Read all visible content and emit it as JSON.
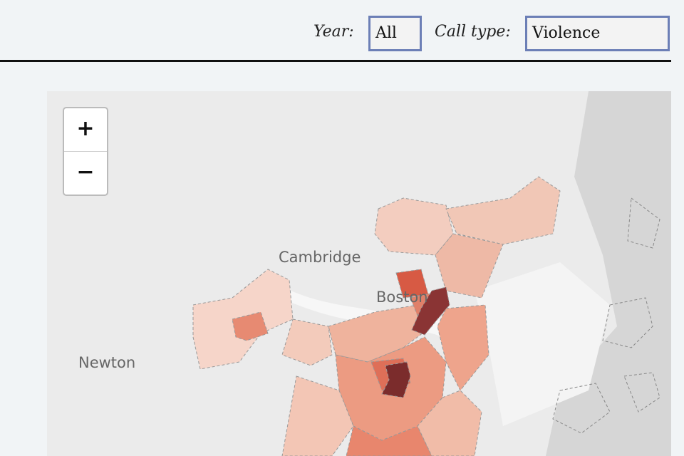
{
  "controls": {
    "year": {
      "label": "Year:",
      "value": "All"
    },
    "call_type": {
      "label": "Call type:",
      "value": "Violence"
    }
  },
  "map": {
    "zoom_in": "+",
    "zoom_out": "−",
    "places": [
      "Cambridge",
      "Boston",
      "Newton"
    ]
  }
}
